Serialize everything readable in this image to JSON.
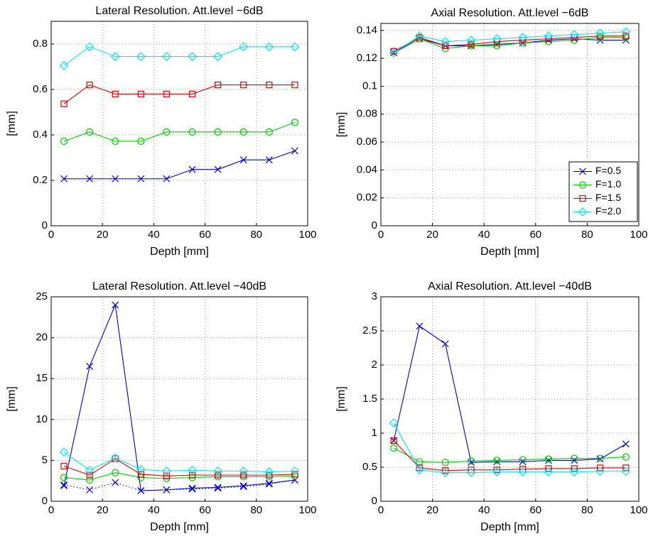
{
  "chart_data": [
    {
      "type": "line",
      "title": "Lateral Resolution. Att.level −6dB",
      "xlabel": "Depth [mm]",
      "ylabel": "[mm]",
      "x": [
        5,
        15,
        25,
        35,
        45,
        55,
        65,
        75,
        85,
        95
      ],
      "xlim": [
        0,
        100
      ],
      "xticks": [
        0,
        20,
        40,
        60,
        80,
        100
      ],
      "ylim": [
        0,
        0.9
      ],
      "yticks": [
        0,
        0.2,
        0.4,
        0.6,
        0.8
      ],
      "grid": true,
      "series": [
        {
          "marker": "x",
          "color": "#0000cc",
          "values": [
            0.207,
            0.207,
            0.207,
            0.207,
            0.207,
            0.248,
            0.248,
            0.29,
            0.29,
            0.33
          ]
        },
        {
          "marker": "circle",
          "color": "#00cc00",
          "values": [
            0.372,
            0.413,
            0.372,
            0.372,
            0.413,
            0.413,
            0.413,
            0.413,
            0.413,
            0.455
          ]
        },
        {
          "marker": "square",
          "color": "#dd0000",
          "values": [
            0.537,
            0.62,
            0.58,
            0.58,
            0.58,
            0.58,
            0.62,
            0.62,
            0.62,
            0.62
          ]
        },
        {
          "marker": "diamond",
          "color": "#00e5ff",
          "values": [
            0.705,
            0.788,
            0.745,
            0.745,
            0.745,
            0.745,
            0.745,
            0.788,
            0.788,
            0.788
          ]
        }
      ]
    },
    {
      "type": "line",
      "title": "Axial Resolution. Att.level −6dB",
      "xlabel": "Depth [mm]",
      "ylabel": "[mm]",
      "x": [
        5,
        15,
        25,
        35,
        45,
        55,
        65,
        75,
        85,
        95
      ],
      "xlim": [
        0,
        100
      ],
      "xticks": [
        0,
        20,
        40,
        60,
        80,
        100
      ],
      "ylim": [
        0,
        0.145
      ],
      "yticks": [
        0,
        0.02,
        0.04,
        0.06,
        0.08,
        0.1,
        0.12,
        0.14
      ],
      "grid": true,
      "legend": "lower right",
      "series": [
        {
          "name": "F=0.5",
          "marker": "x",
          "color": "#0000cc",
          "values": [
            0.124,
            0.134,
            0.129,
            0.129,
            0.13,
            0.131,
            0.133,
            0.134,
            0.133,
            0.133
          ]
        },
        {
          "name": "F=1.0",
          "marker": "circle",
          "color": "#00cc00",
          "values": [
            0.125,
            0.134,
            0.127,
            0.129,
            0.129,
            0.131,
            0.132,
            0.133,
            0.135,
            0.135
          ]
        },
        {
          "name": "F=1.5",
          "marker": "square",
          "color": "#dd0000",
          "values": [
            0.125,
            0.135,
            0.129,
            0.13,
            0.132,
            0.133,
            0.134,
            0.135,
            0.136,
            0.136
          ]
        },
        {
          "name": "F=2.0",
          "marker": "diamond",
          "color": "#00e5ff",
          "values": [
            0.124,
            0.136,
            0.132,
            0.133,
            0.134,
            0.135,
            0.136,
            0.137,
            0.138,
            0.139
          ]
        }
      ]
    },
    {
      "type": "line",
      "title": "Lateral Resolution. Att.level −40dB",
      "xlabel": "Depth [mm]",
      "ylabel": "[mm]",
      "x": [
        5,
        15,
        25,
        35,
        45,
        55,
        65,
        75,
        85,
        95
      ],
      "xlim": [
        0,
        100
      ],
      "xticks": [
        0,
        20,
        40,
        60,
        80,
        100
      ],
      "ylim": [
        0,
        25
      ],
      "yticks": [
        0,
        5,
        10,
        15,
        20,
        25
      ],
      "grid": true,
      "series": [
        {
          "marker": "x",
          "color": "#0000cc",
          "values": [
            1.9,
            16.5,
            24,
            1.3,
            1.4,
            1.6,
            1.7,
            1.9,
            2.2,
            2.6
          ]
        },
        {
          "marker": "x",
          "color": "#0000cc",
          "linestyle": "dotted",
          "values": [
            2.0,
            1.4,
            2.3,
            1.3,
            1.4,
            1.5,
            1.6,
            1.8,
            2.1,
            2.6
          ]
        },
        {
          "marker": "circle",
          "color": "#00cc00",
          "values": [
            2.9,
            2.6,
            3.5,
            2.9,
            2.8,
            2.9,
            3.0,
            3.0,
            3.0,
            3.1
          ]
        },
        {
          "marker": "square",
          "color": "#dd0000",
          "values": [
            4.3,
            3.2,
            5.2,
            3.3,
            3.1,
            3.2,
            3.2,
            3.2,
            3.2,
            3.3
          ]
        },
        {
          "marker": "diamond",
          "color": "#00e5ff",
          "values": [
            6.0,
            3.8,
            5.3,
            3.9,
            3.7,
            3.8,
            3.7,
            3.7,
            3.6,
            3.7
          ]
        }
      ]
    },
    {
      "type": "line",
      "title": "Axial Resolution. Att.level −40dB",
      "xlabel": "Depth [mm]",
      "ylabel": "[mm]",
      "x": [
        5,
        15,
        25,
        35,
        45,
        55,
        65,
        75,
        85,
        95
      ],
      "xlim": [
        0,
        100
      ],
      "xticks": [
        0,
        20,
        40,
        60,
        80,
        100
      ],
      "ylim": [
        0,
        3
      ],
      "yticks": [
        0,
        0.5,
        1,
        1.5,
        2,
        2.5,
        3
      ],
      "grid": true,
      "series": [
        {
          "marker": "x",
          "color": "#0000cc",
          "values": [
            0.89,
            2.57,
            2.31,
            0.57,
            0.58,
            0.58,
            0.6,
            0.6,
            0.62,
            0.84
          ]
        },
        {
          "marker": "circle",
          "color": "#00cc00",
          "values": [
            0.78,
            0.58,
            0.57,
            0.59,
            0.6,
            0.61,
            0.62,
            0.63,
            0.63,
            0.65
          ]
        },
        {
          "marker": "square",
          "color": "#dd0000",
          "values": [
            0.89,
            0.49,
            0.45,
            0.46,
            0.46,
            0.47,
            0.48,
            0.48,
            0.49,
            0.49
          ]
        },
        {
          "marker": "diamond",
          "color": "#00e5ff",
          "values": [
            1.15,
            0.46,
            0.42,
            0.42,
            0.43,
            0.43,
            0.43,
            0.43,
            0.44,
            0.44
          ]
        }
      ]
    }
  ]
}
